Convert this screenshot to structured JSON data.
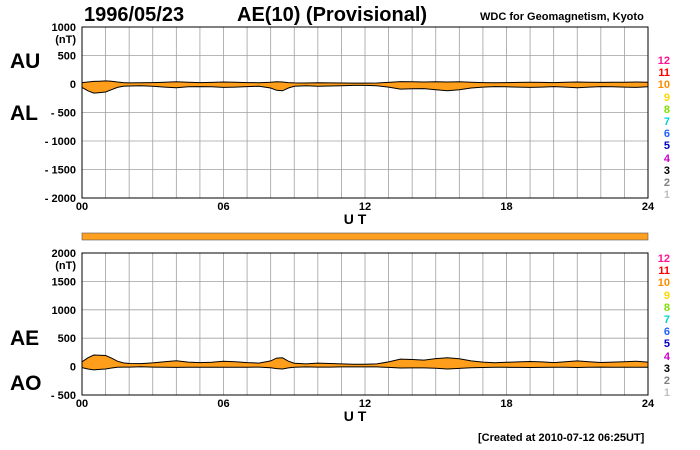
{
  "header": {
    "date": "1996/05/23",
    "title": "AE(10) (Provisional)",
    "source": "WDC for Geomagnetism, Kyoto"
  },
  "footer": {
    "created": "[Created at 2010-07-12 06:25UT]"
  },
  "colors": {
    "fill": "#ff9e1b",
    "line": "#000000",
    "grid": "#a0a0a0",
    "bar": "#ffa020"
  },
  "station_levels": [
    {
      "label": "12",
      "color": "#ff1493"
    },
    {
      "label": "11",
      "color": "#ff0000"
    },
    {
      "label": "10",
      "color": "#ff8c00"
    },
    {
      "label": "9",
      "color": "#ffd700"
    },
    {
      "label": "8",
      "color": "#7fe000"
    },
    {
      "label": "7",
      "color": "#00d0d0"
    },
    {
      "label": "6",
      "color": "#1e64ff"
    },
    {
      "label": "5",
      "color": "#0000c0"
    },
    {
      "label": "4",
      "color": "#d000d0"
    },
    {
      "label": "3",
      "color": "#000000"
    },
    {
      "label": "2",
      "color": "#808080"
    },
    {
      "label": "1",
      "color": "#c0c0c0"
    }
  ],
  "chart_data": [
    {
      "type": "area",
      "upper_label": "AU",
      "lower_label": "AL",
      "unit": "(nT)",
      "xlabel": "U T",
      "x_ticks": [
        "00",
        "06",
        "12",
        "18",
        "24"
      ],
      "xlim": [
        0,
        24
      ],
      "ylim": [
        -2000,
        1000
      ],
      "y_ticks": [
        "1000",
        "500",
        "0",
        "- 500",
        "- 1000",
        "- 1500",
        "- 2000"
      ],
      "grid": true,
      "x": [
        0,
        0.25,
        0.5,
        0.75,
        1,
        1.25,
        1.5,
        1.75,
        2,
        2.5,
        3,
        3.5,
        4,
        4.5,
        5,
        5.5,
        6,
        6.5,
        7,
        7.5,
        8,
        8.25,
        8.5,
        8.75,
        9,
        9.5,
        10,
        10.5,
        11,
        11.5,
        12,
        12.5,
        13,
        13.5,
        14,
        14.5,
        15,
        15.5,
        16,
        16.5,
        17,
        17.5,
        18,
        18.5,
        19,
        19.5,
        20,
        20.5,
        21,
        21.5,
        22,
        22.5,
        23,
        23.5,
        24
      ],
      "series": [
        {
          "name": "AU",
          "values": [
            25,
            35,
            45,
            50,
            55,
            50,
            35,
            25,
            20,
            22,
            25,
            30,
            38,
            30,
            25,
            28,
            35,
            30,
            25,
            22,
            30,
            40,
            35,
            25,
            20,
            18,
            22,
            20,
            18,
            15,
            15,
            18,
            28,
            42,
            40,
            35,
            40,
            35,
            38,
            30,
            25,
            22,
            25,
            28,
            30,
            28,
            25,
            30,
            35,
            30,
            28,
            30,
            32,
            35,
            30
          ]
        },
        {
          "name": "AL",
          "values": [
            -60,
            -120,
            -160,
            -150,
            -140,
            -100,
            -60,
            -40,
            -35,
            -30,
            -40,
            -55,
            -65,
            -50,
            -45,
            -50,
            -60,
            -55,
            -45,
            -40,
            -70,
            -110,
            -120,
            -70,
            -40,
            -30,
            -40,
            -35,
            -30,
            -25,
            -25,
            -30,
            -55,
            -90,
            -85,
            -80,
            -100,
            -120,
            -100,
            -70,
            -55,
            -45,
            -50,
            -55,
            -60,
            -55,
            -45,
            -55,
            -65,
            -55,
            -45,
            -50,
            -55,
            -60,
            -50
          ]
        }
      ]
    },
    {
      "type": "area",
      "upper_label": "AE",
      "lower_label": "AO",
      "unit": "(nT)",
      "xlabel": "U T",
      "x_ticks": [
        "00",
        "06",
        "12",
        "18",
        "24"
      ],
      "xlim": [
        0,
        24
      ],
      "ylim": [
        -500,
        2000
      ],
      "y_ticks": [
        "2000",
        "1500",
        "1000",
        "500",
        "0",
        "- 500"
      ],
      "grid": true,
      "x": [
        0,
        0.25,
        0.5,
        0.75,
        1,
        1.25,
        1.5,
        1.75,
        2,
        2.5,
        3,
        3.5,
        4,
        4.5,
        5,
        5.5,
        6,
        6.5,
        7,
        7.5,
        8,
        8.25,
        8.5,
        8.75,
        9,
        9.5,
        10,
        10.5,
        11,
        11.5,
        12,
        12.5,
        13,
        13.5,
        14,
        14.5,
        15,
        15.5,
        16,
        16.5,
        17,
        17.5,
        18,
        18.5,
        19,
        19.5,
        20,
        20.5,
        21,
        21.5,
        22,
        22.5,
        23,
        23.5,
        24
      ],
      "series": [
        {
          "name": "AE",
          "values": [
            85,
            155,
            205,
            200,
            195,
            150,
            95,
            65,
            55,
            52,
            65,
            85,
            103,
            80,
            70,
            78,
            95,
            85,
            70,
            62,
            100,
            150,
            155,
            95,
            60,
            48,
            62,
            55,
            48,
            40,
            40,
            48,
            83,
            132,
            125,
            115,
            140,
            155,
            138,
            100,
            80,
            67,
            75,
            83,
            90,
            83,
            70,
            85,
            100,
            85,
            73,
            80,
            87,
            95,
            80
          ]
        },
        {
          "name": "AO",
          "values": [
            -18,
            -43,
            -58,
            -50,
            -43,
            -25,
            -13,
            -8,
            -8,
            -4,
            -8,
            -13,
            -14,
            -10,
            -10,
            -11,
            -13,
            -13,
            -10,
            -9,
            -20,
            -35,
            -43,
            -23,
            -10,
            -6,
            -9,
            -8,
            -6,
            -5,
            -5,
            -6,
            -14,
            -24,
            -23,
            -23,
            -30,
            -43,
            -31,
            -20,
            -15,
            -12,
            -13,
            -14,
            -15,
            -14,
            -10,
            -13,
            -15,
            -13,
            -9,
            -10,
            -12,
            -13,
            -10
          ]
        }
      ]
    }
  ]
}
